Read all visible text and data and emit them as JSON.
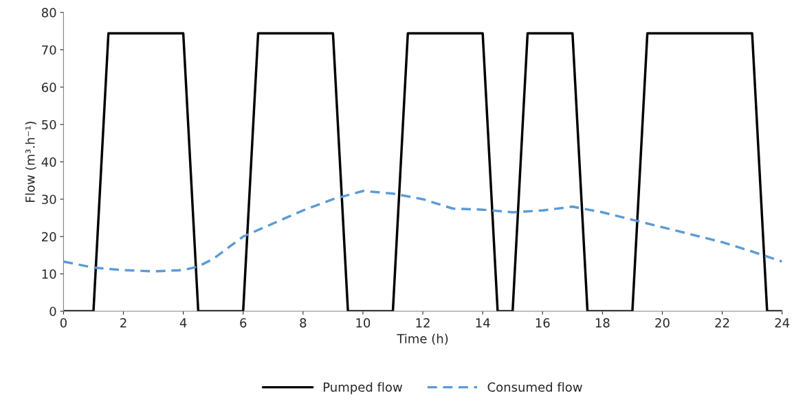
{
  "chart_data": {
    "type": "line",
    "xlabel": "Time (h)",
    "ylabel": "Flow (m³.h⁻¹)",
    "xlim": [
      0,
      24
    ],
    "xticks": [
      0,
      2,
      4,
      6,
      8,
      10,
      12,
      14,
      16,
      18,
      20,
      22,
      24
    ],
    "ylim": [
      0,
      80
    ],
    "yticks": [
      0,
      10,
      20,
      30,
      40,
      50,
      60,
      70,
      80
    ],
    "grid": false,
    "legend": "bottom",
    "marker": "none",
    "series": [
      {
        "name": "Pumped flow",
        "color": "#000000",
        "line_style": "solid",
        "x": [
          0,
          1,
          1.5,
          4,
          4.5,
          6,
          6.5,
          9,
          9.5,
          11,
          11.5,
          14,
          14.5,
          15,
          15.5,
          17,
          17.5,
          19,
          19.5,
          23,
          23.5,
          24
        ],
        "values": [
          0,
          0,
          74.4,
          74.4,
          0,
          0,
          74.4,
          74.4,
          0,
          0,
          74.4,
          74.4,
          0,
          0,
          74.4,
          74.4,
          0,
          0,
          74.4,
          74.4,
          0,
          0
        ]
      },
      {
        "name": "Consumed flow",
        "color": "#5b9bd5",
        "line_style": "dashed",
        "x": [
          0,
          1,
          2,
          3,
          4,
          4.5,
          5,
          6,
          7,
          8,
          9,
          10,
          11,
          12,
          13,
          14,
          15,
          16,
          17,
          18,
          19,
          20,
          21,
          22,
          23,
          24
        ],
        "values": [
          13.3,
          11.7,
          11,
          10.7,
          11,
          12,
          14,
          20,
          23.5,
          27,
          30,
          32.2,
          31.5,
          30,
          27.5,
          27.2,
          26.5,
          27,
          28,
          26.5,
          24.5,
          22.5,
          20.5,
          18.5,
          16,
          13.3
        ]
      }
    ]
  }
}
